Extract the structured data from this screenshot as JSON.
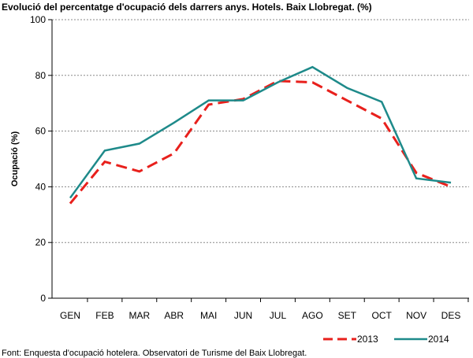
{
  "title": "Evolució del percentatge d'ocupació dels darrers anys. Hotels. Baix Llobregat. (%)",
  "footer": "Font: Enquesta d'ocupació hotelera. Observatori de Turisme del Baix Llobregat.",
  "chart_data": {
    "type": "line",
    "title": "Evolució del percentatge d'ocupació dels darrers anys. Hotels. Baix Llobregat. (%)",
    "ylabel": "Ocupació (%)",
    "xlabel": "",
    "ylim": [
      0,
      100
    ],
    "yticks": [
      0,
      20,
      40,
      60,
      80,
      100
    ],
    "grid": true,
    "legend": "bottom-right",
    "categories": [
      "GEN",
      "FEB",
      "MAR",
      "ABR",
      "MAI",
      "JUN",
      "JUL",
      "AGO",
      "SET",
      "OCT",
      "NOV",
      "DES"
    ],
    "series": [
      {
        "name": "2013",
        "color": "#e8201c",
        "dash": true,
        "values": [
          34,
          49,
          45.5,
          52,
          69.5,
          71.5,
          78,
          77.5,
          71,
          64.5,
          45,
          40
        ]
      },
      {
        "name": "2014",
        "color": "#1e8a8a",
        "dash": false,
        "values": [
          36,
          53,
          55.5,
          63,
          71,
          71,
          77.5,
          83,
          75.5,
          70.5,
          43,
          41.5
        ]
      }
    ]
  }
}
